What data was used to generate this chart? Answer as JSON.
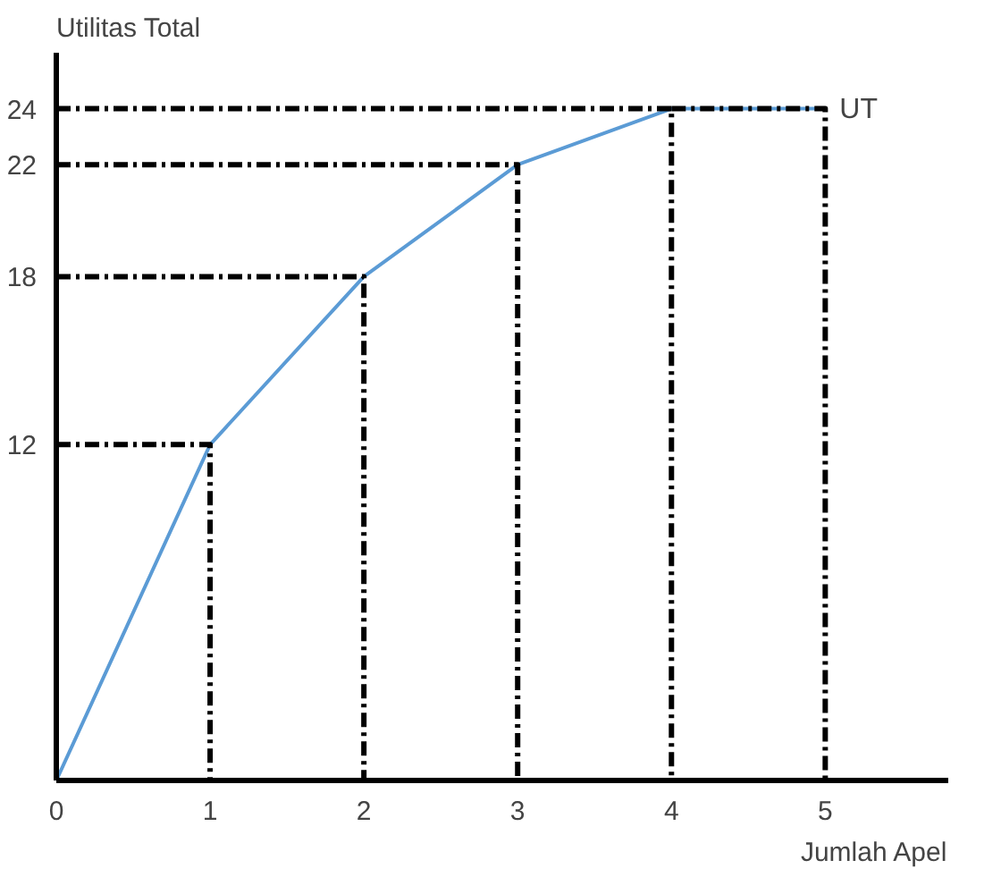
{
  "chart_data": {
    "type": "line",
    "ylabel": "Utilitas Total",
    "xlabel": "Jumlah Apel",
    "x": [
      0,
      1,
      2,
      3,
      4,
      5
    ],
    "series": [
      {
        "name": "UT",
        "color": "#5b9bd5",
        "values": [
          0,
          12,
          18,
          22,
          24,
          24
        ]
      },
      {
        "color": "#000000",
        "line_style": "dashed",
        "x": [
          0,
          1,
          1
        ],
        "values": [
          12,
          12,
          0
        ]
      },
      {
        "color": "#000000",
        "line_style": "dashed",
        "x": [
          0,
          2,
          2
        ],
        "values": [
          18,
          18,
          0
        ]
      },
      {
        "color": "#000000",
        "line_style": "dashed",
        "x": [
          0,
          3,
          3
        ],
        "values": [
          22,
          22,
          0
        ]
      },
      {
        "color": "#000000",
        "line_style": "dashed",
        "x": [
          0,
          4,
          4
        ],
        "values": [
          24,
          24,
          0
        ]
      },
      {
        "color": "#000000",
        "line_style": "dashed",
        "x": [
          4,
          5,
          5
        ],
        "values": [
          24,
          24,
          0
        ]
      }
    ],
    "xlim": [
      0,
      5.8
    ],
    "ylim": [
      0,
      26
    ],
    "xticks": [
      0,
      1,
      2,
      3,
      4,
      5
    ],
    "yticks": [
      12,
      18,
      22,
      24
    ],
    "grid": false,
    "marker": "none",
    "line_style": "solid"
  }
}
